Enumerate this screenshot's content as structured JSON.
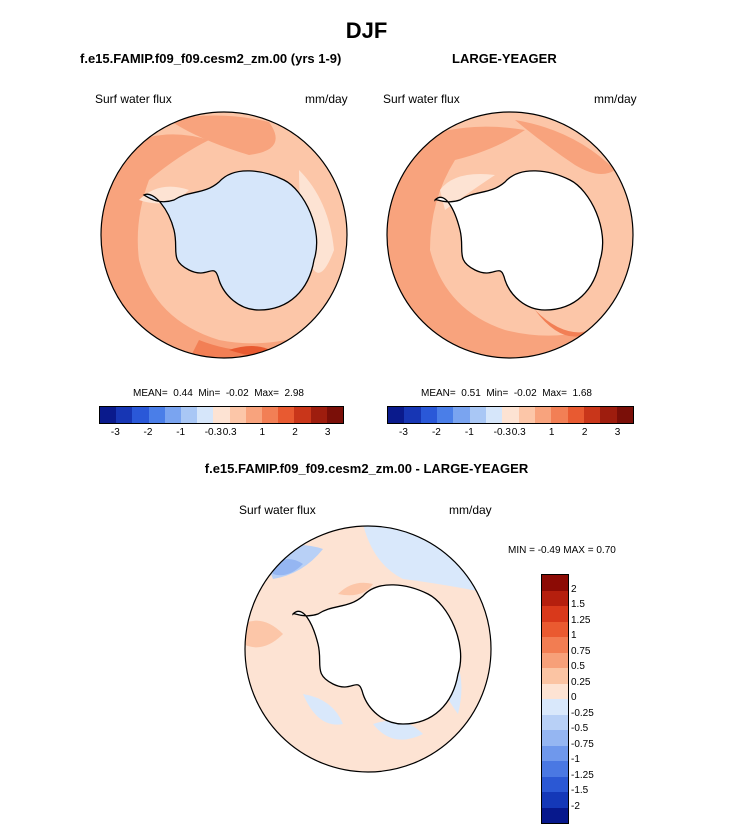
{
  "figure": {
    "title": "DJF",
    "top_left": {
      "case_title": "f.e15.FAMIP.f09_f09.cesm2_zm.00 (yrs 1-9)",
      "variable": "Surf water flux",
      "units": "mm/day",
      "stats": {
        "mean_label": "MEAN=",
        "mean": "0.44",
        "min_label": "Min=",
        "min": "-0.02",
        "max_label": "Max=",
        "max": "2.98"
      }
    },
    "top_right": {
      "case_title": "LARGE-YEAGER",
      "variable": "Surf water flux",
      "units": "mm/day",
      "stats": {
        "mean_label": "MEAN=",
        "mean": "0.51",
        "min_label": "Min=",
        "min": "-0.02",
        "max_label": "Max=",
        "max": "1.68"
      }
    },
    "bottom": {
      "case_title": "f.e15.FAMIP.f09_f09.cesm2_zm.00 - LARGE-YEAGER",
      "variable": "Surf water flux",
      "units": "mm/day",
      "minmax": "MIN =  -0.49 MAX =   0.70"
    },
    "colorbar_main": {
      "colors": [
        "#0a1a8c",
        "#1736b4",
        "#2a58d8",
        "#4a7ee8",
        "#7aa4f0",
        "#a9c7f5",
        "#d6e6fa",
        "#fde3d3",
        "#fcc6a8",
        "#f8a37d",
        "#f27f55",
        "#e85a31",
        "#c9361a",
        "#9e1d0e",
        "#7a0f08"
      ],
      "labels": [
        "-3",
        "-2",
        "-1",
        "-0.3",
        "0.3",
        "1",
        "2",
        "3"
      ]
    },
    "colorbar_diff": {
      "colors": [
        "#8c0b05",
        "#b51f0e",
        "#d9391b",
        "#ea5a30",
        "#f27d52",
        "#f7a079",
        "#fbc4a3",
        "#fde3d3",
        "#d9e8fb",
        "#b8d0f6",
        "#95b6f2",
        "#6f98ec",
        "#4a78e3",
        "#2b58d4",
        "#1438b8",
        "#07188c"
      ],
      "labels": [
        "2",
        "1.5",
        "1.25",
        "1",
        "0.75",
        "0.5",
        "0.25",
        "0",
        "-0.25",
        "-0.5",
        "-0.75",
        "-1",
        "-1.25",
        "-1.5",
        "-2"
      ]
    }
  }
}
